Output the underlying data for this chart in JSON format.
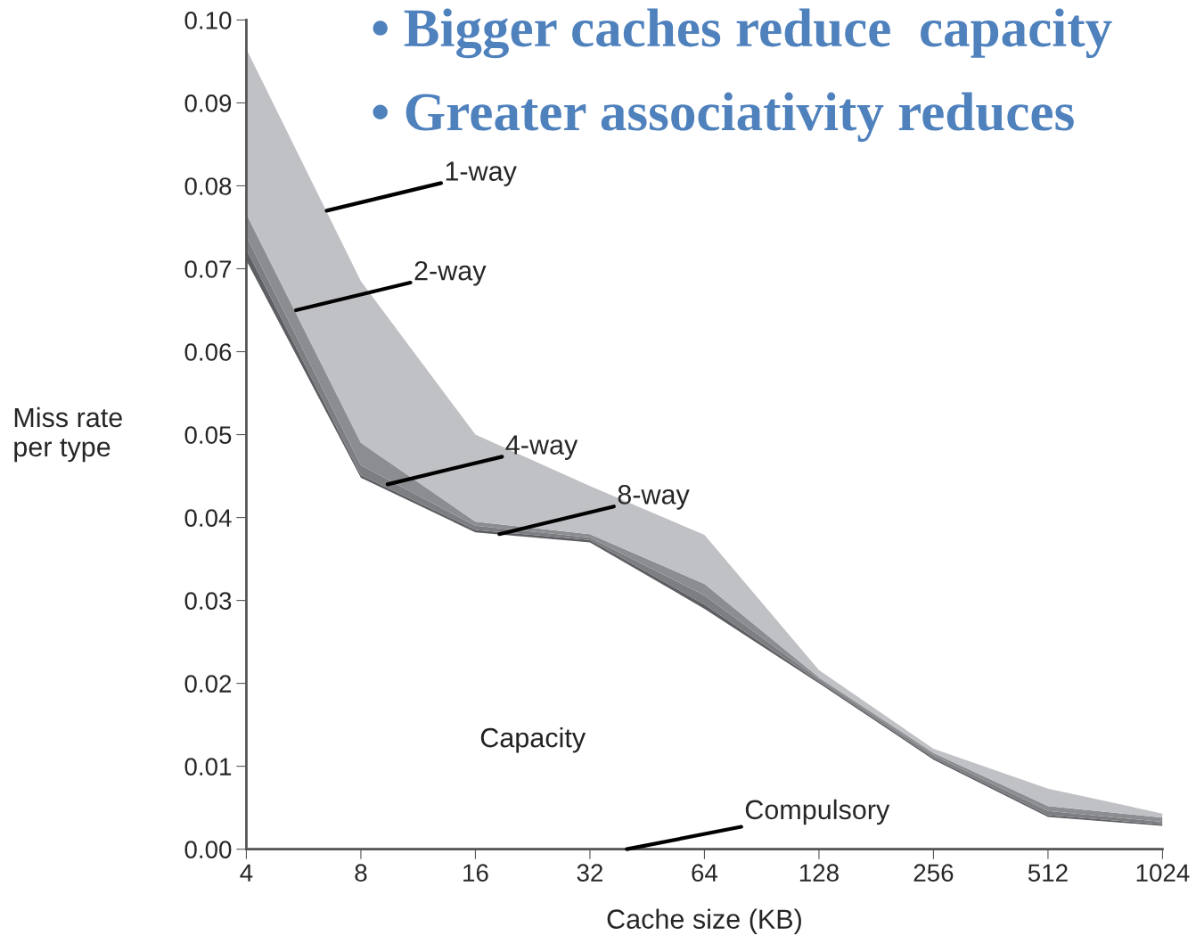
{
  "chart_data": {
    "type": "area",
    "stacked": true,
    "xlabel": "Cache size (KB)",
    "ylabel": "Miss rate\nper type",
    "x": [
      4,
      8,
      16,
      32,
      64,
      128,
      256,
      512,
      1024
    ],
    "xlim": [
      4,
      1024
    ],
    "xticks": [
      4,
      8,
      16,
      32,
      64,
      128,
      256,
      512,
      1024
    ],
    "ylim": [
      0,
      0.1
    ],
    "yticks": [
      {
        "value": 0,
        "label": "0.00"
      },
      {
        "value": 0.01,
        "label": "0.01"
      },
      {
        "value": 0.02,
        "label": "0.02"
      },
      {
        "value": 0.03,
        "label": "0.03"
      },
      {
        "value": 0.04,
        "label": "0.04"
      },
      {
        "value": 0.05,
        "label": "0.05"
      },
      {
        "value": 0.06,
        "label": "0.06"
      },
      {
        "value": 0.07,
        "label": "0.07"
      },
      {
        "value": 0.08,
        "label": "0.08"
      },
      {
        "value": 0.09,
        "label": "0.09"
      },
      {
        "value": 0.1,
        "label": "0.10"
      }
    ],
    "log": "x",
    "grid": false,
    "legend": false,
    "series": [
      {
        "color": "#d6d6d8",
        "values": [
          0.0002,
          0.0002,
          0.0002,
          0.0002,
          0.0002,
          0.0002,
          0.0002,
          0.0002,
          0.0002
        ]
      },
      {
        "name": "Capacity",
        "color": "#ffffff",
        "values": [
          0.0708,
          0.0446,
          0.038,
          0.0368,
          0.0288,
          0.0198,
          0.0106,
          0.0037,
          0.0026
        ]
      },
      {
        "color": "#5e5f63",
        "values": [
          0.0013,
          0.0003,
          0.0003,
          0.0003,
          0.0005,
          0.0002,
          0.0002,
          0.0002,
          0.0002
        ]
      },
      {
        "color": "#7d7e82",
        "values": [
          0.0016,
          0.0012,
          0.0005,
          0.0003,
          0.0011,
          0.0003,
          0.0003,
          0.0005,
          0.0003
        ]
      },
      {
        "color": "#8c8d91",
        "values": [
          0.0027,
          0.0027,
          0.0005,
          0.0004,
          0.0014,
          0.0002,
          0.0003,
          0.0006,
          0.0005
        ]
      },
      {
        "color": "#c0c1c4",
        "values": [
          0.0199,
          0.0195,
          0.0105,
          0.0058,
          0.0059,
          0.0009,
          0.0005,
          0.0021,
          0.0005
        ]
      }
    ],
    "annotations": [
      "• Bigger caches reduce  capacity",
      "• Greater associativity reduces",
      {
        "text": "1-way",
        "x": 6.5,
        "y": 0.077
      },
      {
        "text": "2-way",
        "x": 5.4,
        "y": 0.065
      },
      {
        "text": "4-way",
        "x": 9.4,
        "y": 0.044
      },
      {
        "text": "8-way",
        "x": 18.5,
        "y": 0.038
      },
      {
        "text": "Compulsory",
        "x": 40,
        "y": 0.0
      }
    ]
  }
}
